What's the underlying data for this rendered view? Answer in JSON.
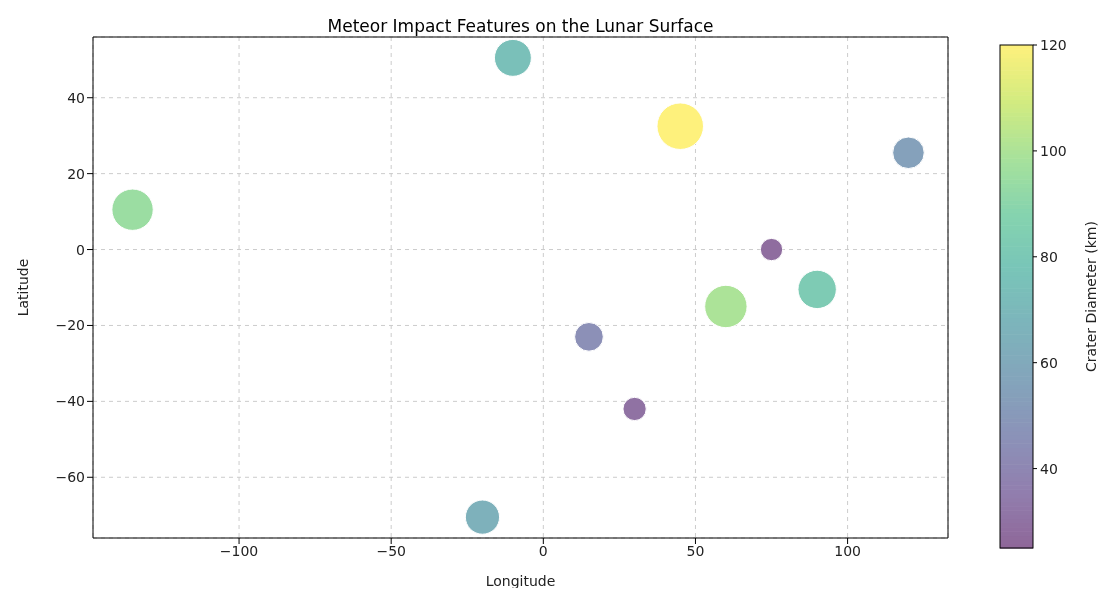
{
  "chart_data": {
    "type": "bubble",
    "title": "Meteor Impact Features on the Lunar Surface",
    "xlabel": "Longitude",
    "ylabel": "Latitude",
    "clabel": "Crater Diameter (km)",
    "x": [
      -135,
      -10,
      45,
      120,
      75,
      90,
      60,
      15,
      30,
      -20
    ],
    "values": [
      10.5,
      50.5,
      32.5,
      25.5,
      0,
      -10.5,
      -15,
      -23,
      -42,
      -70.5
    ],
    "cvalues": [
      95,
      75,
      120,
      55,
      28,
      82,
      100,
      45,
      30,
      65
    ],
    "sizes": [
      0.79,
      0.63,
      1,
      0.46,
      0.23,
      0.68,
      0.83,
      0.38,
      0.25,
      0.54
    ],
    "xlim": [
      -148,
      133
    ],
    "xticks": [
      -100,
      -50,
      0,
      50,
      100
    ],
    "ylim": [
      -76,
      56
    ],
    "yticks": [
      -60,
      -40,
      -20,
      0,
      20,
      40
    ],
    "clim": [
      25,
      120
    ],
    "cticks": [
      40,
      60,
      80,
      100,
      120
    ],
    "grid": true
  }
}
